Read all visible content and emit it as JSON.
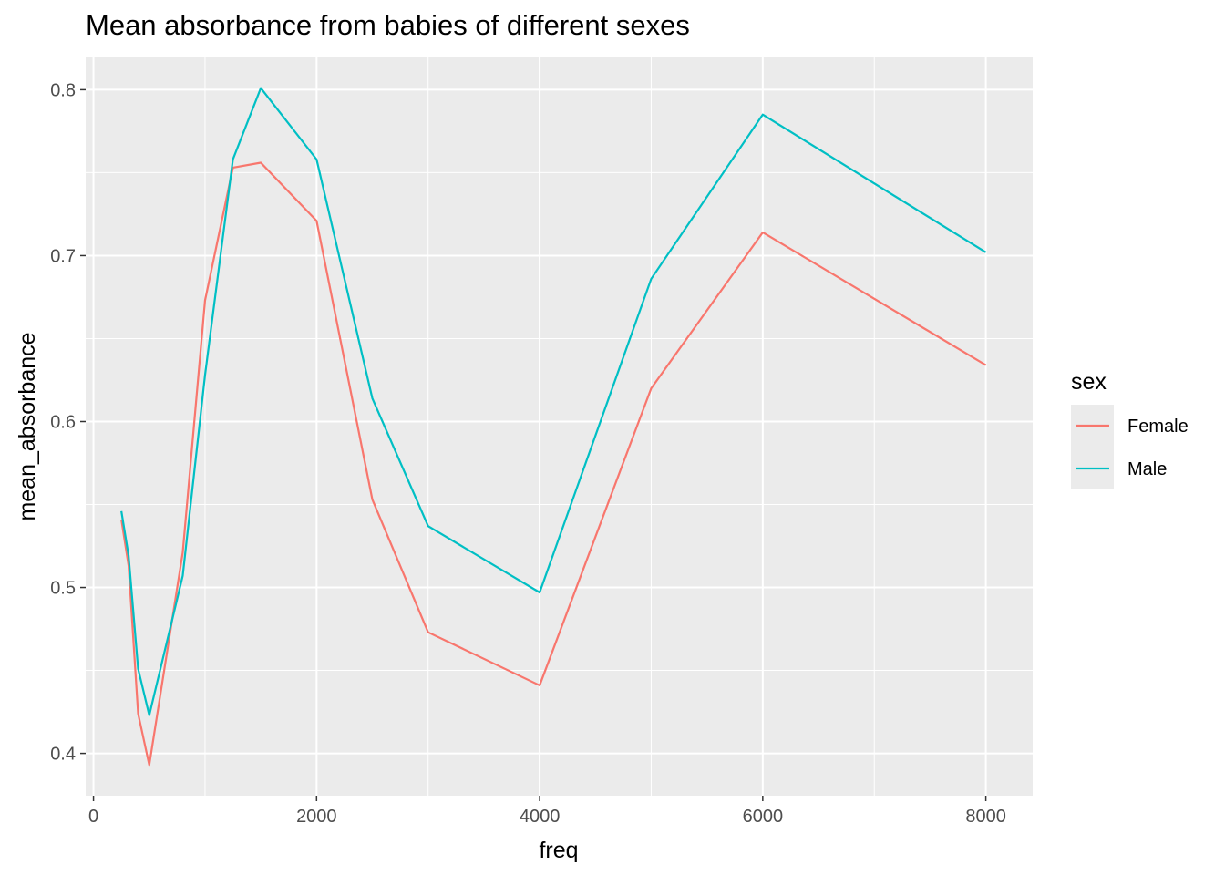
{
  "chart_data": {
    "type": "line",
    "title": "Mean absorbance from babies of different sexes",
    "xlabel": "freq",
    "ylabel": "mean_absorbance",
    "xlim": [
      -70,
      8420
    ],
    "ylim": [
      0.3745,
      0.82
    ],
    "x_ticks": [
      0,
      2000,
      4000,
      6000,
      8000
    ],
    "x_tick_labels": [
      "0",
      "2000",
      "4000",
      "6000",
      "8000"
    ],
    "y_ticks": [
      0.4,
      0.5,
      0.6,
      0.7,
      0.8
    ],
    "y_tick_labels": [
      "0.4",
      "0.5",
      "0.6",
      "0.7",
      "0.8"
    ],
    "grid": true,
    "legend": {
      "title": "sex",
      "position": "right"
    },
    "x": [
      250,
      315,
      400,
      500,
      800,
      1000,
      1250,
      1500,
      2000,
      2500,
      3000,
      4000,
      5000,
      6000,
      8000
    ],
    "series": [
      {
        "name": "Female",
        "color": "#F8766D",
        "values": [
          0.541,
          0.513,
          0.424,
          0.393,
          0.521,
          0.673,
          0.753,
          0.756,
          0.721,
          0.553,
          0.473,
          0.441,
          0.62,
          0.714,
          0.634
        ]
      },
      {
        "name": "Male",
        "color": "#00BFC4",
        "values": [
          0.546,
          0.519,
          0.451,
          0.423,
          0.507,
          0.628,
          0.758,
          0.801,
          0.758,
          0.614,
          0.537,
          0.497,
          0.686,
          0.785,
          0.702
        ]
      }
    ]
  }
}
